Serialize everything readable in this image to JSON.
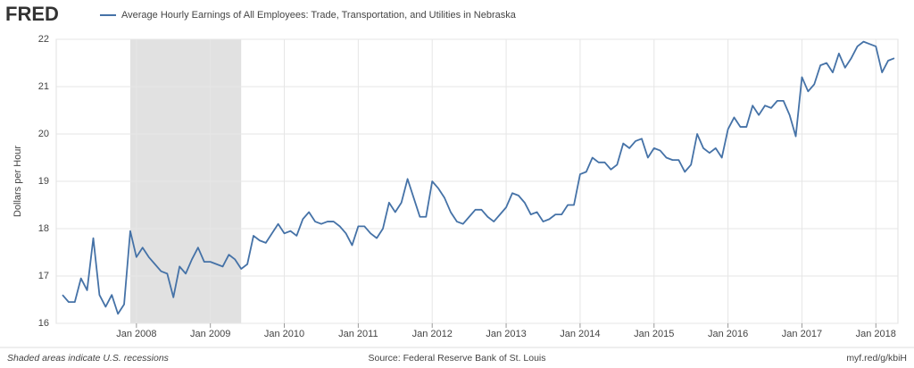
{
  "logo": "FRED",
  "chart_data": {
    "type": "line",
    "title": "Average Hourly Earnings of All Employees: Trade, Transportation, and Utilities in Nebraska",
    "y_label": "Dollars per Hour",
    "footer_left": "Shaded areas indicate U.S. recessions",
    "footer_center": "Source: Federal Reserve Bank of St. Louis",
    "footer_right": "myf.red/g/kbiH",
    "recessions": [
      {
        "start": "2007-12",
        "end": "2009-06"
      }
    ],
    "xlim": [
      "2007-01",
      "2018-04"
    ],
    "xticks": [
      {
        "value": "2008-01",
        "label": "Jan 2008"
      },
      {
        "value": "2009-01",
        "label": "Jan 2009"
      },
      {
        "value": "2010-01",
        "label": "Jan 2010"
      },
      {
        "value": "2011-01",
        "label": "Jan 2011"
      },
      {
        "value": "2012-01",
        "label": "Jan 2012"
      },
      {
        "value": "2013-01",
        "label": "Jan 2013"
      },
      {
        "value": "2014-01",
        "label": "Jan 2014"
      },
      {
        "value": "2015-01",
        "label": "Jan 2015"
      },
      {
        "value": "2016-01",
        "label": "Jan 2016"
      },
      {
        "value": "2017-01",
        "label": "Jan 2017"
      },
      {
        "value": "2018-01",
        "label": "Jan 2018"
      }
    ],
    "ylim": [
      16,
      22
    ],
    "yticks": [
      16,
      17,
      18,
      19,
      20,
      21,
      22
    ],
    "grid": true,
    "start": "2007-01",
    "series": [
      {
        "name": "Average Hourly Earnings of All Employees: Trade, Transportation, and Utilities in Nebraska",
        "color": "#4572a7",
        "values": [
          16.6,
          16.45,
          16.45,
          16.95,
          16.7,
          17.8,
          16.6,
          16.35,
          16.6,
          16.2,
          16.4,
          17.95,
          17.4,
          17.6,
          17.4,
          17.25,
          17.1,
          17.05,
          16.55,
          17.2,
          17.05,
          17.35,
          17.6,
          17.3,
          17.3,
          17.25,
          17.2,
          17.45,
          17.35,
          17.15,
          17.25,
          17.85,
          17.75,
          17.7,
          17.9,
          18.1,
          17.9,
          17.95,
          17.85,
          18.2,
          18.35,
          18.15,
          18.1,
          18.15,
          18.15,
          18.05,
          17.9,
          17.65,
          18.05,
          18.05,
          17.9,
          17.8,
          18.0,
          18.55,
          18.35,
          18.55,
          19.05,
          18.65,
          18.25,
          18.25,
          19.0,
          18.85,
          18.65,
          18.35,
          18.15,
          18.1,
          18.25,
          18.4,
          18.4,
          18.25,
          18.15,
          18.3,
          18.45,
          18.75,
          18.7,
          18.55,
          18.3,
          18.35,
          18.15,
          18.2,
          18.3,
          18.3,
          18.5,
          18.5,
          19.15,
          19.2,
          19.5,
          19.4,
          19.4,
          19.25,
          19.35,
          19.8,
          19.7,
          19.85,
          19.9,
          19.5,
          19.7,
          19.65,
          19.5,
          19.45,
          19.45,
          19.2,
          19.35,
          20.0,
          19.7,
          19.6,
          19.7,
          19.5,
          20.1,
          20.35,
          20.15,
          20.15,
          20.6,
          20.4,
          20.6,
          20.55,
          20.7,
          20.7,
          20.4,
          19.95,
          21.2,
          20.9,
          21.05,
          21.45,
          21.5,
          21.3,
          21.7,
          21.4,
          21.6,
          21.85,
          21.95,
          21.9,
          21.85,
          21.3,
          21.55,
          21.6
        ]
      }
    ]
  }
}
